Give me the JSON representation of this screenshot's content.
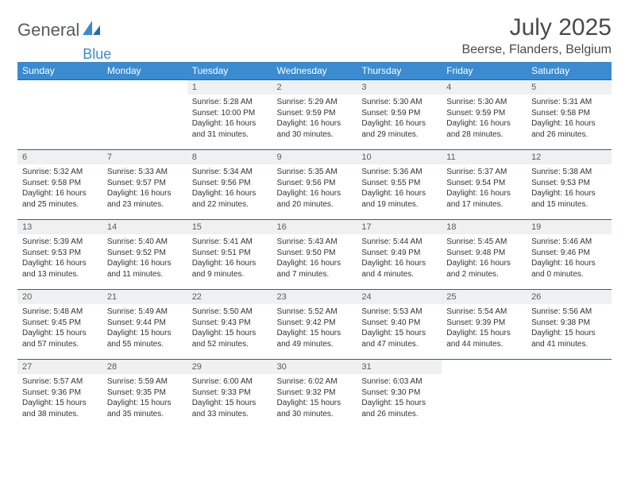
{
  "brand": {
    "name1": "General",
    "name2": "Blue",
    "accent": "#3b8bd0",
    "gray": "#6a7078"
  },
  "header": {
    "title": "July 2025",
    "location": "Beerse, Flanders, Belgium"
  },
  "styles": {
    "header_bg": "#3b8bd0",
    "header_text": "#ffffff",
    "row_border": "#2f5f8a",
    "daynum_bg": "#eef0f2",
    "body_font_size": 10,
    "title_font_size": 30
  },
  "calendar": {
    "type": "table",
    "days_of_week": [
      "Sunday",
      "Monday",
      "Tuesday",
      "Wednesday",
      "Thursday",
      "Friday",
      "Saturday"
    ],
    "weeks": [
      [
        null,
        null,
        {
          "n": "1",
          "sr": "5:28 AM",
          "ss": "10:00 PM",
          "dl": "16 hours and 31 minutes."
        },
        {
          "n": "2",
          "sr": "5:29 AM",
          "ss": "9:59 PM",
          "dl": "16 hours and 30 minutes."
        },
        {
          "n": "3",
          "sr": "5:30 AM",
          "ss": "9:59 PM",
          "dl": "16 hours and 29 minutes."
        },
        {
          "n": "4",
          "sr": "5:30 AM",
          "ss": "9:59 PM",
          "dl": "16 hours and 28 minutes."
        },
        {
          "n": "5",
          "sr": "5:31 AM",
          "ss": "9:58 PM",
          "dl": "16 hours and 26 minutes."
        }
      ],
      [
        {
          "n": "6",
          "sr": "5:32 AM",
          "ss": "9:58 PM",
          "dl": "16 hours and 25 minutes."
        },
        {
          "n": "7",
          "sr": "5:33 AM",
          "ss": "9:57 PM",
          "dl": "16 hours and 23 minutes."
        },
        {
          "n": "8",
          "sr": "5:34 AM",
          "ss": "9:56 PM",
          "dl": "16 hours and 22 minutes."
        },
        {
          "n": "9",
          "sr": "5:35 AM",
          "ss": "9:56 PM",
          "dl": "16 hours and 20 minutes."
        },
        {
          "n": "10",
          "sr": "5:36 AM",
          "ss": "9:55 PM",
          "dl": "16 hours and 19 minutes."
        },
        {
          "n": "11",
          "sr": "5:37 AM",
          "ss": "9:54 PM",
          "dl": "16 hours and 17 minutes."
        },
        {
          "n": "12",
          "sr": "5:38 AM",
          "ss": "9:53 PM",
          "dl": "16 hours and 15 minutes."
        }
      ],
      [
        {
          "n": "13",
          "sr": "5:39 AM",
          "ss": "9:53 PM",
          "dl": "16 hours and 13 minutes."
        },
        {
          "n": "14",
          "sr": "5:40 AM",
          "ss": "9:52 PM",
          "dl": "16 hours and 11 minutes."
        },
        {
          "n": "15",
          "sr": "5:41 AM",
          "ss": "9:51 PM",
          "dl": "16 hours and 9 minutes."
        },
        {
          "n": "16",
          "sr": "5:43 AM",
          "ss": "9:50 PM",
          "dl": "16 hours and 7 minutes."
        },
        {
          "n": "17",
          "sr": "5:44 AM",
          "ss": "9:49 PM",
          "dl": "16 hours and 4 minutes."
        },
        {
          "n": "18",
          "sr": "5:45 AM",
          "ss": "9:48 PM",
          "dl": "16 hours and 2 minutes."
        },
        {
          "n": "19",
          "sr": "5:46 AM",
          "ss": "9:46 PM",
          "dl": "16 hours and 0 minutes."
        }
      ],
      [
        {
          "n": "20",
          "sr": "5:48 AM",
          "ss": "9:45 PM",
          "dl": "15 hours and 57 minutes."
        },
        {
          "n": "21",
          "sr": "5:49 AM",
          "ss": "9:44 PM",
          "dl": "15 hours and 55 minutes."
        },
        {
          "n": "22",
          "sr": "5:50 AM",
          "ss": "9:43 PM",
          "dl": "15 hours and 52 minutes."
        },
        {
          "n": "23",
          "sr": "5:52 AM",
          "ss": "9:42 PM",
          "dl": "15 hours and 49 minutes."
        },
        {
          "n": "24",
          "sr": "5:53 AM",
          "ss": "9:40 PM",
          "dl": "15 hours and 47 minutes."
        },
        {
          "n": "25",
          "sr": "5:54 AM",
          "ss": "9:39 PM",
          "dl": "15 hours and 44 minutes."
        },
        {
          "n": "26",
          "sr": "5:56 AM",
          "ss": "9:38 PM",
          "dl": "15 hours and 41 minutes."
        }
      ],
      [
        {
          "n": "27",
          "sr": "5:57 AM",
          "ss": "9:36 PM",
          "dl": "15 hours and 38 minutes."
        },
        {
          "n": "28",
          "sr": "5:59 AM",
          "ss": "9:35 PM",
          "dl": "15 hours and 35 minutes."
        },
        {
          "n": "29",
          "sr": "6:00 AM",
          "ss": "9:33 PM",
          "dl": "15 hours and 33 minutes."
        },
        {
          "n": "30",
          "sr": "6:02 AM",
          "ss": "9:32 PM",
          "dl": "15 hours and 30 minutes."
        },
        {
          "n": "31",
          "sr": "6:03 AM",
          "ss": "9:30 PM",
          "dl": "15 hours and 26 minutes."
        },
        null,
        null
      ]
    ],
    "labels": {
      "sunrise": "Sunrise:",
      "sunset": "Sunset:",
      "daylight": "Daylight:"
    }
  }
}
